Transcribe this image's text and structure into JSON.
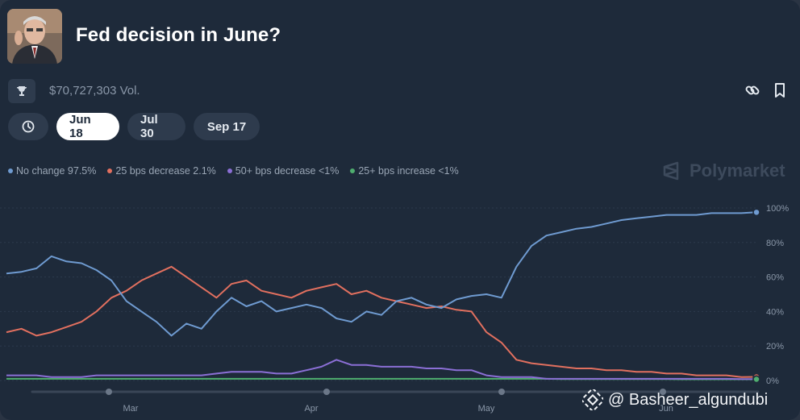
{
  "header": {
    "title": "Fed decision in June?",
    "volume": "$70,727,303 Vol."
  },
  "date_tabs": [
    {
      "label": "Jun 18",
      "active": true
    },
    {
      "label": "Jul 30",
      "active": false
    },
    {
      "label": "Sep 17",
      "active": false
    }
  ],
  "brand": "Polymarket",
  "watermark": "@ Basheer_algundubi",
  "icons": [
    "portrait-avatar",
    "trophy-icon",
    "link-icon",
    "bookmark-icon",
    "history-icon",
    "polymarket-logo-icon",
    "binance-logo-icon"
  ],
  "colors": {
    "background": "#1e2a3a",
    "no_change": "#6f9bd1",
    "decrease_25": "#e2705f",
    "decrease_50plus": "#8b6fd6",
    "increase_25": "#4fae6f"
  },
  "chart_data": {
    "type": "line",
    "x_tick_labels": [
      "Mar",
      "Apr",
      "May",
      "Jun"
    ],
    "y_tick_labels": [
      "100%",
      "80%",
      "60%",
      "40%",
      "20%",
      "0%"
    ],
    "ylim": [
      0,
      100
    ],
    "grid": true,
    "legend_position": "top-left",
    "x": [
      0,
      2,
      4,
      6,
      8,
      10,
      12,
      14,
      16,
      18,
      20,
      22,
      24,
      26,
      28,
      30,
      32,
      34,
      36,
      38,
      40,
      42,
      44,
      46,
      48,
      50,
      52,
      54,
      56,
      58,
      60,
      62,
      64,
      66,
      68,
      70,
      72,
      74,
      76,
      78,
      80,
      82,
      84,
      86,
      88,
      90,
      92,
      94,
      96,
      98,
      100
    ],
    "series": [
      {
        "name": "No change 97.5%",
        "color": "#6f9bd1",
        "values": [
          62,
          63,
          65,
          72,
          69,
          68,
          64,
          58,
          46,
          40,
          34,
          26,
          33,
          30,
          40,
          48,
          43,
          46,
          40,
          42,
          44,
          42,
          36,
          34,
          40,
          38,
          46,
          48,
          44,
          42,
          47,
          49,
          50,
          48,
          66,
          78,
          84,
          86,
          88,
          89,
          91,
          93,
          94,
          95,
          96,
          96,
          96,
          97,
          97,
          97,
          97.5
        ]
      },
      {
        "name": "25 bps decrease 2.1%",
        "color": "#e2705f",
        "values": [
          28,
          30,
          26,
          28,
          31,
          34,
          40,
          48,
          52,
          58,
          62,
          66,
          60,
          54,
          48,
          56,
          58,
          52,
          50,
          48,
          52,
          54,
          56,
          50,
          52,
          48,
          46,
          44,
          42,
          43,
          41,
          40,
          28,
          22,
          12,
          10,
          9,
          8,
          7,
          7,
          6,
          6,
          5,
          5,
          4,
          4,
          3,
          3,
          3,
          2,
          2.1
        ]
      },
      {
        "name": "50+ bps decrease <1%",
        "color": "#8b6fd6",
        "values": [
          3,
          3,
          3,
          2,
          2,
          2,
          3,
          3,
          3,
          3,
          3,
          3,
          3,
          3,
          4,
          5,
          5,
          5,
          4,
          4,
          6,
          8,
          12,
          9,
          9,
          8,
          8,
          8,
          7,
          7,
          6,
          6,
          3,
          2,
          2,
          2,
          1,
          1,
          1,
          1,
          1,
          1,
          1,
          1,
          1,
          1,
          1,
          1,
          1,
          0.8,
          0.8
        ]
      },
      {
        "name": "25+ bps increase <1%",
        "color": "#4fae6f",
        "values": [
          1,
          1,
          1,
          1,
          1,
          1,
          1,
          1,
          1,
          1,
          1,
          1,
          1,
          1,
          1,
          1,
          1,
          1,
          1,
          1,
          1,
          1,
          1,
          1,
          1,
          1,
          1,
          1,
          1,
          1,
          1,
          1,
          1,
          1,
          1,
          1,
          1,
          0.8,
          0.8,
          0.8,
          0.8,
          0.8,
          0.8,
          0.8,
          0.8,
          0.7,
          0.7,
          0.7,
          0.7,
          0.7,
          0.7
        ]
      }
    ]
  }
}
